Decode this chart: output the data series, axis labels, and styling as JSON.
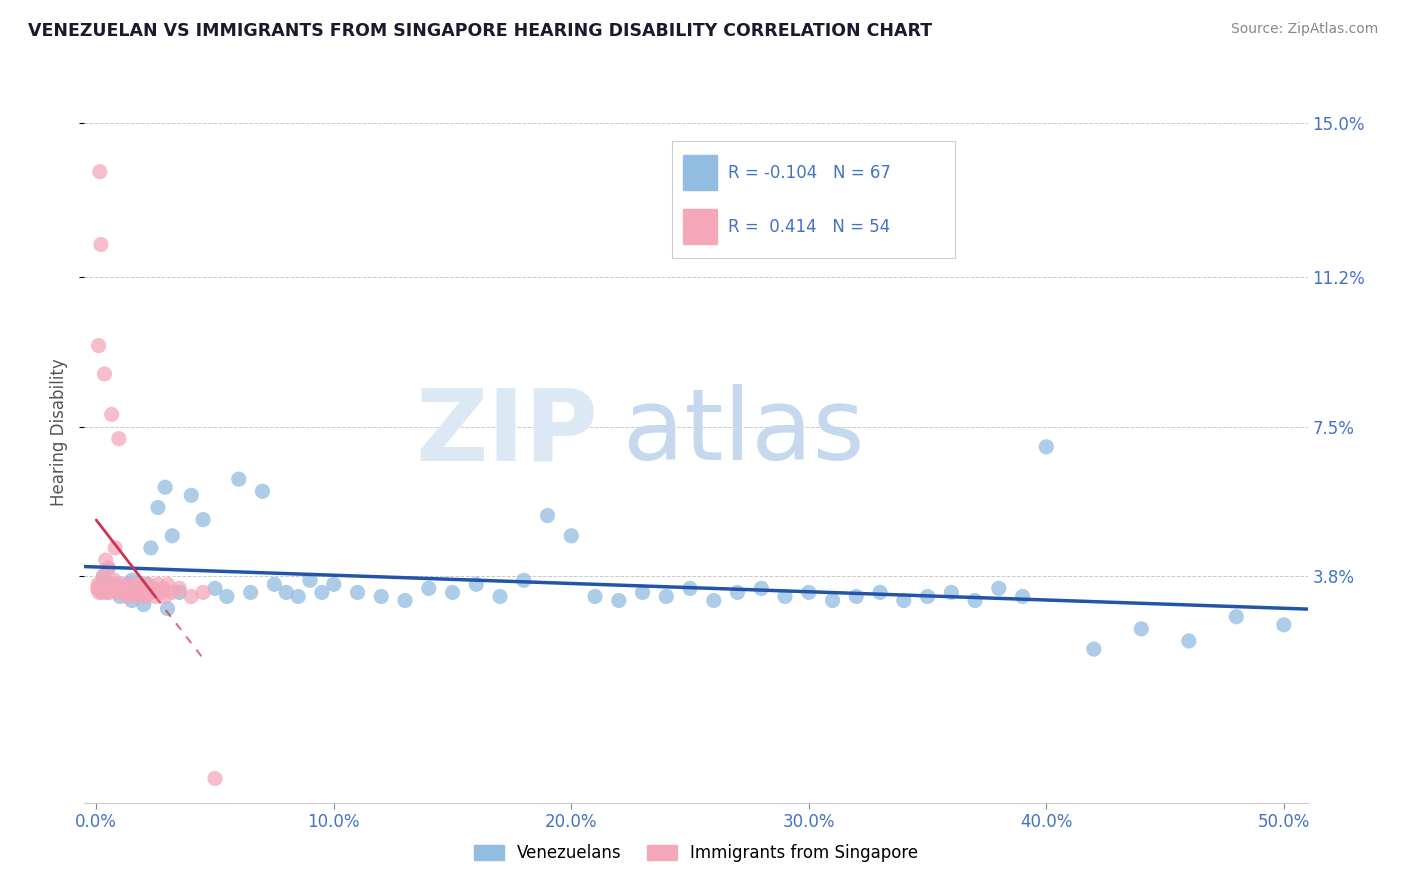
{
  "title": "VENEZUELAN VS IMMIGRANTS FROM SINGAPORE HEARING DISABILITY CORRELATION CHART",
  "source": "Source: ZipAtlas.com",
  "xlabel_vals": [
    0.0,
    10.0,
    20.0,
    30.0,
    40.0,
    50.0
  ],
  "ylabel_vals": [
    3.8,
    7.5,
    11.2,
    15.0
  ],
  "xlim": [
    -0.5,
    51.0
  ],
  "ylim": [
    -1.8,
    16.5
  ],
  "ylabel": "Hearing Disability",
  "legend_label1": "Venezuelans",
  "legend_label2": "Immigrants from Singapore",
  "R1": -0.104,
  "N1": 67,
  "R2": 0.414,
  "N2": 54,
  "color_blue": "#92bce0",
  "color_pink": "#f4a7b9",
  "color_trend_blue": "#2255aa",
  "color_trend_pink": "#cc3355",
  "color_axis_labels": "#4472c4",
  "blue_x": [
    0.3,
    0.5,
    0.7,
    0.9,
    1.1,
    1.3,
    1.5,
    1.7,
    1.9,
    2.1,
    2.3,
    2.6,
    2.9,
    3.2,
    3.5,
    4.0,
    4.5,
    5.0,
    5.5,
    6.0,
    6.5,
    7.0,
    7.5,
    8.0,
    8.5,
    9.0,
    9.5,
    10.0,
    11.0,
    12.0,
    13.0,
    14.0,
    15.0,
    16.0,
    17.0,
    18.0,
    19.0,
    20.0,
    21.0,
    22.0,
    23.0,
    24.0,
    25.0,
    26.0,
    27.0,
    28.0,
    29.0,
    30.0,
    31.0,
    32.0,
    33.0,
    34.0,
    35.0,
    36.0,
    37.0,
    38.0,
    39.0,
    40.0,
    42.0,
    44.0,
    46.0,
    48.0,
    50.0,
    1.0,
    1.5,
    2.0,
    3.0
  ],
  "blue_y": [
    3.8,
    4.0,
    3.6,
    3.5,
    3.4,
    3.6,
    3.7,
    3.5,
    3.4,
    3.6,
    4.5,
    5.5,
    6.0,
    4.8,
    3.4,
    5.8,
    5.2,
    3.5,
    3.3,
    6.2,
    3.4,
    5.9,
    3.6,
    3.4,
    3.3,
    3.7,
    3.4,
    3.6,
    3.4,
    3.3,
    3.2,
    3.5,
    3.4,
    3.6,
    3.3,
    3.7,
    5.3,
    4.8,
    3.3,
    3.2,
    3.4,
    3.3,
    3.5,
    3.2,
    3.4,
    3.5,
    3.3,
    3.4,
    3.2,
    3.3,
    3.4,
    3.2,
    3.3,
    3.4,
    3.2,
    3.5,
    3.3,
    7.0,
    2.0,
    2.5,
    2.2,
    2.8,
    2.6,
    3.3,
    3.2,
    3.1,
    3.0
  ],
  "pink_x": [
    0.05,
    0.08,
    0.1,
    0.12,
    0.15,
    0.18,
    0.2,
    0.23,
    0.25,
    0.28,
    0.3,
    0.33,
    0.35,
    0.38,
    0.4,
    0.43,
    0.45,
    0.48,
    0.5,
    0.55,
    0.6,
    0.65,
    0.7,
    0.75,
    0.8,
    0.85,
    0.9,
    0.95,
    1.0,
    1.1,
    1.2,
    1.3,
    1.4,
    1.5,
    1.6,
    1.7,
    1.8,
    1.9,
    2.0,
    2.1,
    2.2,
    2.3,
    2.4,
    2.5,
    2.6,
    2.7,
    2.8,
    2.9,
    3.0,
    3.2,
    3.5,
    4.0,
    4.5,
    5.0
  ],
  "pink_y": [
    3.5,
    3.6,
    9.5,
    3.4,
    13.8,
    3.5,
    12.0,
    3.6,
    3.4,
    3.5,
    3.8,
    3.6,
    8.8,
    3.5,
    4.2,
    3.4,
    3.6,
    3.5,
    4.0,
    3.4,
    3.6,
    7.8,
    3.5,
    3.7,
    4.5,
    3.4,
    3.5,
    7.2,
    3.6,
    3.4,
    3.5,
    3.3,
    3.6,
    3.4,
    3.5,
    3.3,
    3.6,
    3.4,
    3.5,
    3.3,
    3.6,
    3.4,
    3.5,
    3.3,
    3.6,
    3.4,
    3.5,
    3.3,
    3.6,
    3.4,
    3.5,
    3.3,
    3.4,
    -1.2
  ]
}
